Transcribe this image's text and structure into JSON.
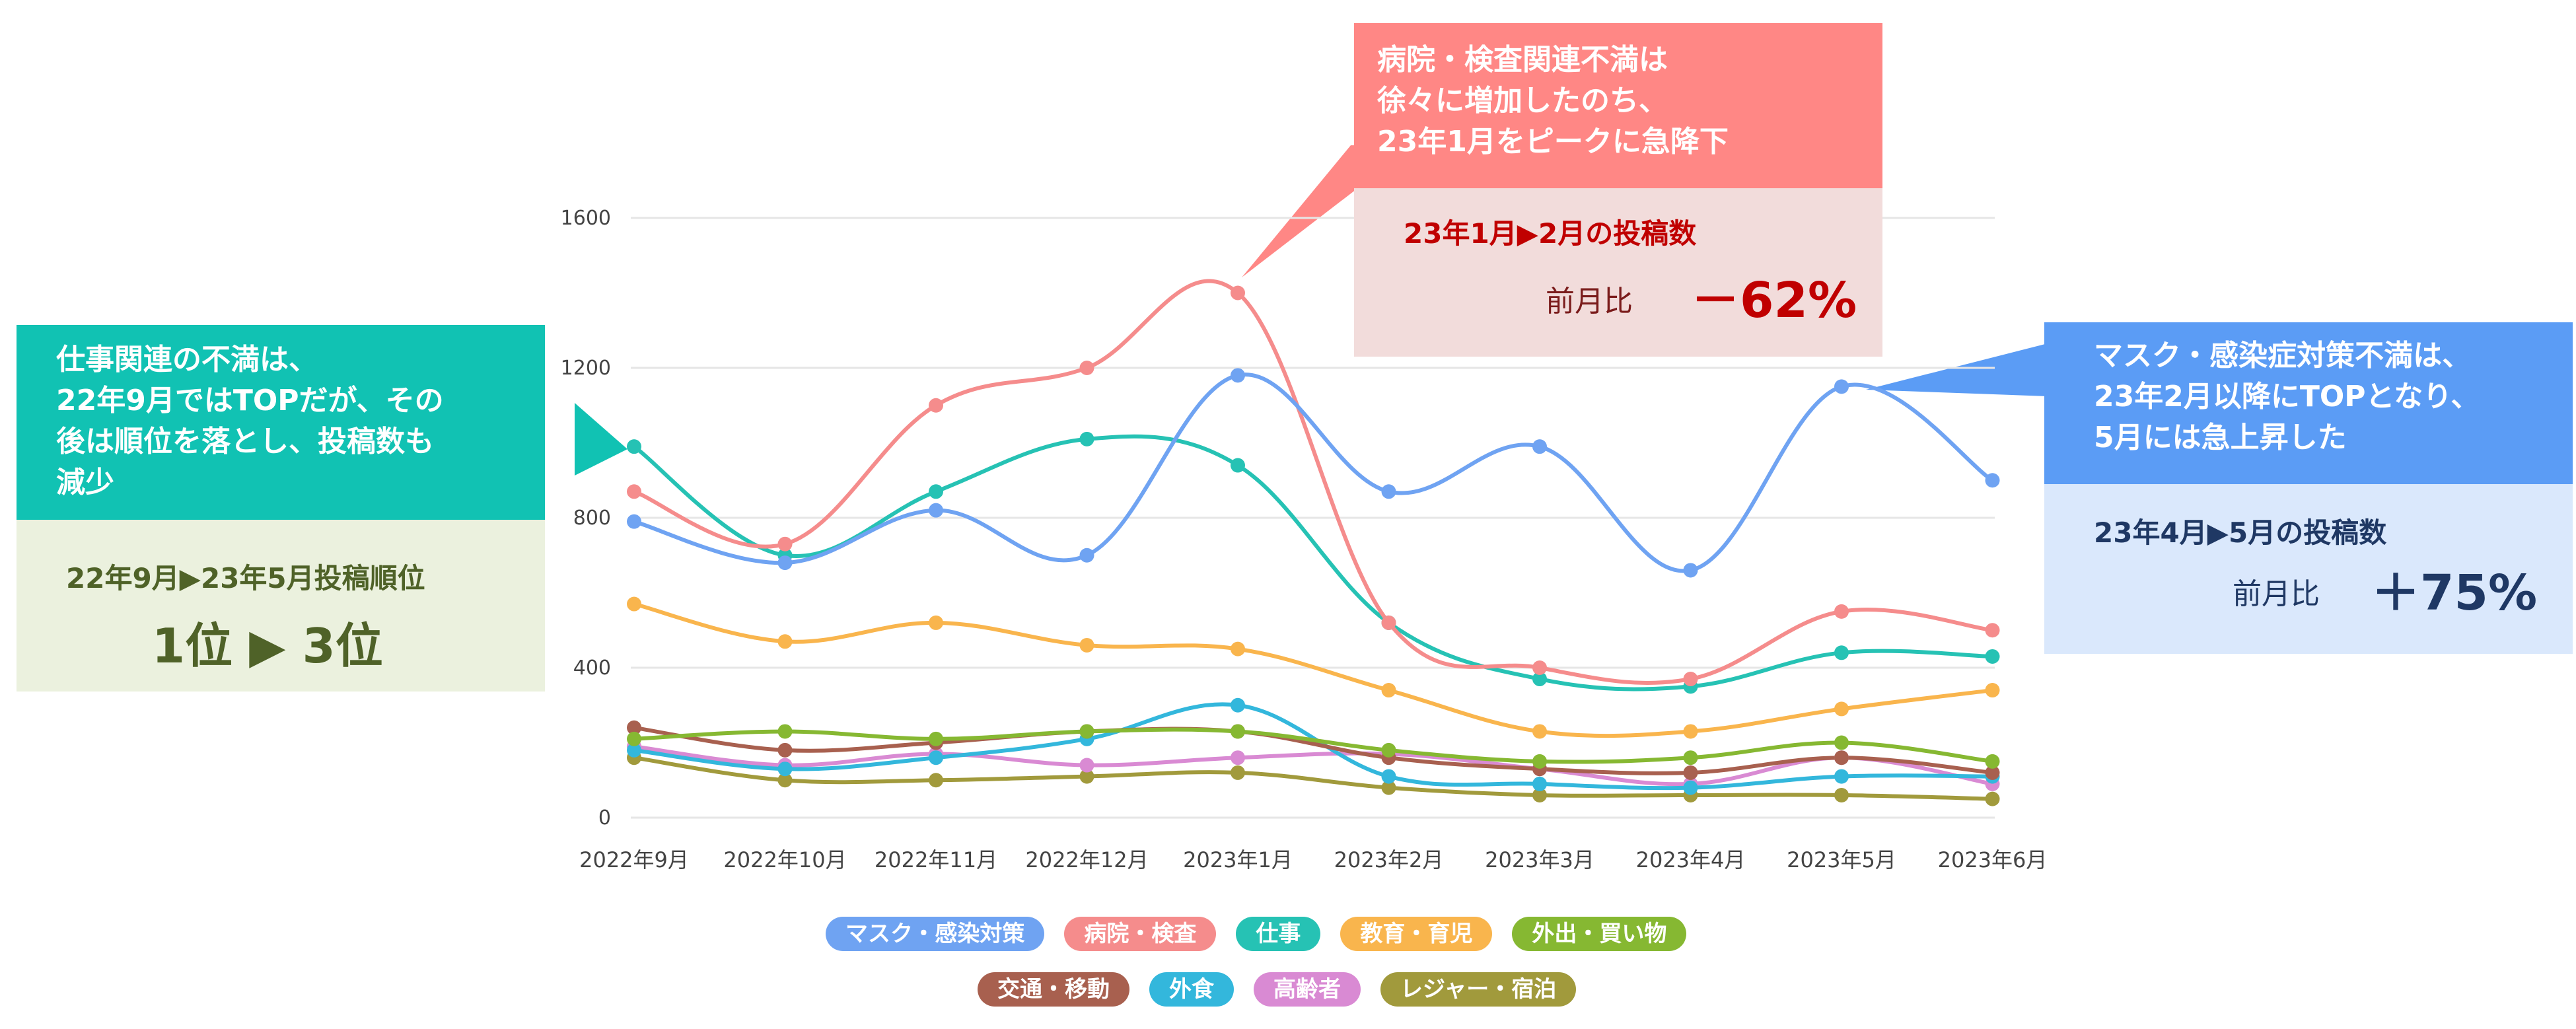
{
  "chart_data": {
    "type": "line",
    "categories": [
      "2022年9月",
      "2022年10月",
      "2022年11月",
      "2022年12月",
      "2023年1月",
      "2023年2月",
      "2023年3月",
      "2023年4月",
      "2023年5月",
      "2023年6月"
    ],
    "y_ticks": [
      "1600",
      "1200",
      "800",
      "400",
      "0"
    ],
    "ylim": [
      0,
      1600
    ],
    "series": [
      {
        "name": "マスク・感染対策",
        "color": "#6fa3f2",
        "values": [
          790,
          680,
          820,
          700,
          1180,
          870,
          990,
          660,
          1150,
          900
        ]
      },
      {
        "name": "病院・検査",
        "color": "#f58c8c",
        "values": [
          870,
          730,
          1100,
          1200,
          1400,
          520,
          400,
          370,
          550,
          500
        ]
      },
      {
        "name": "仕事",
        "color": "#26c2b4",
        "values": [
          990,
          700,
          870,
          1010,
          940,
          520,
          370,
          350,
          440,
          430
        ]
      },
      {
        "name": "教育・育児",
        "color": "#f9b54d",
        "values": [
          570,
          470,
          520,
          460,
          450,
          340,
          230,
          230,
          290,
          340
        ]
      },
      {
        "name": "外出・買い物",
        "color": "#86b832",
        "values": [
          210,
          230,
          210,
          230,
          230,
          180,
          150,
          160,
          200,
          150
        ]
      },
      {
        "name": "交通・移動",
        "color": "#a8604f",
        "values": [
          240,
          180,
          200,
          230,
          230,
          160,
          130,
          120,
          160,
          120
        ]
      },
      {
        "name": "外食",
        "color": "#33b7dc",
        "values": [
          180,
          130,
          160,
          210,
          300,
          110,
          90,
          80,
          110,
          110
        ]
      },
      {
        "name": "高齢者",
        "color": "#d98ad3",
        "values": [
          190,
          140,
          170,
          140,
          160,
          170,
          130,
          90,
          160,
          90
        ]
      },
      {
        "name": "レジャー・宿泊",
        "color": "#a19a3c",
        "values": [
          160,
          100,
          100,
          110,
          120,
          80,
          60,
          60,
          60,
          50
        ]
      }
    ]
  },
  "callouts": {
    "hospital": {
      "title_lines": [
        "病院・検査関連不満は",
        "徐々に増加したのち、",
        "23年1月をピークに急降下"
      ],
      "sub": "23年1月▶2月の投稿数",
      "ratio_label": "前月比",
      "ratio_value": "－62%"
    },
    "work": {
      "title_lines": [
        "仕事関連の不満は、",
        "22年9月ではTOPだが、その",
        "後は順位を落とし、投稿数も",
        "減少"
      ],
      "sub": "22年9月▶23年5月投稿順位",
      "rank": "1位 ▶ 3位"
    },
    "mask": {
      "title_lines": [
        "マスク・感染症対策不満は、",
        "23年2月以降にTOPとなり、",
        "5月には急上昇した"
      ],
      "sub": "23年4月▶5月の投稿数",
      "ratio_label": "前月比",
      "ratio_value": "＋75%"
    }
  }
}
